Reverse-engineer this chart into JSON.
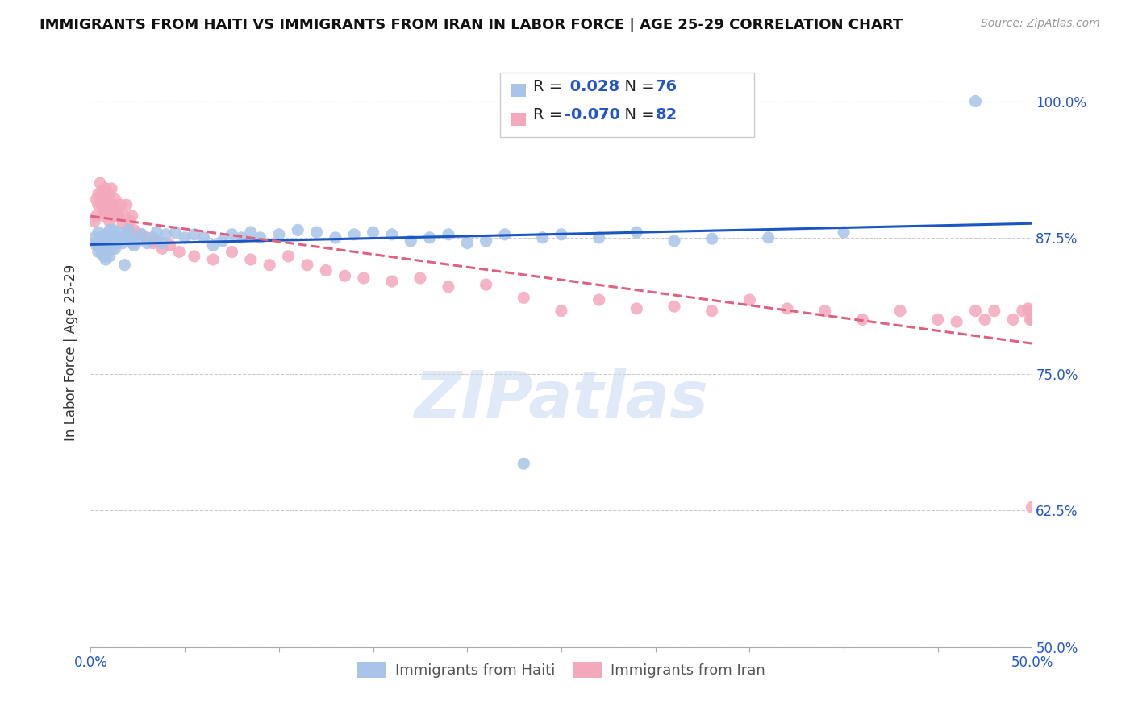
{
  "title": "IMMIGRANTS FROM HAITI VS IMMIGRANTS FROM IRAN IN LABOR FORCE | AGE 25-29 CORRELATION CHART",
  "source": "Source: ZipAtlas.com",
  "ylabel": "In Labor Force | Age 25-29",
  "xlim": [
    0.0,
    0.5
  ],
  "ylim": [
    0.5,
    1.04
  ],
  "ytick_vals": [
    0.5,
    0.625,
    0.75,
    0.875,
    1.0
  ],
  "haiti_color": "#a8c4e8",
  "iran_color": "#f4a8bc",
  "haiti_line_color": "#1a56c4",
  "iran_line_color": "#e06080",
  "haiti_R": 0.028,
  "haiti_N": 76,
  "iran_R": -0.07,
  "iran_N": 82,
  "legend_label_haiti": "Immigrants from Haiti",
  "legend_label_iran": "Immigrants from Iran",
  "blue_text_color": "#2255cc",
  "dark_text_color": "#222222",
  "watermark": "ZIPatlas",
  "haiti_x": [
    0.002,
    0.003,
    0.003,
    0.004,
    0.004,
    0.005,
    0.005,
    0.006,
    0.006,
    0.007,
    0.007,
    0.007,
    0.008,
    0.008,
    0.008,
    0.009,
    0.009,
    0.01,
    0.01,
    0.01,
    0.011,
    0.011,
    0.012,
    0.012,
    0.013,
    0.013,
    0.014,
    0.015,
    0.016,
    0.017,
    0.018,
    0.019,
    0.02,
    0.021,
    0.022,
    0.023,
    0.025,
    0.027,
    0.03,
    0.033,
    0.035,
    0.038,
    0.04,
    0.045,
    0.05,
    0.055,
    0.06,
    0.065,
    0.07,
    0.075,
    0.08,
    0.085,
    0.09,
    0.1,
    0.11,
    0.12,
    0.13,
    0.14,
    0.15,
    0.16,
    0.17,
    0.18,
    0.19,
    0.2,
    0.21,
    0.22,
    0.23,
    0.24,
    0.25,
    0.27,
    0.29,
    0.31,
    0.33,
    0.36,
    0.4,
    0.47
  ],
  "haiti_y": [
    0.875,
    0.87,
    0.868,
    0.88,
    0.862,
    0.875,
    0.868,
    0.875,
    0.86,
    0.872,
    0.858,
    0.865,
    0.878,
    0.86,
    0.855,
    0.865,
    0.87,
    0.882,
    0.858,
    0.87,
    0.865,
    0.878,
    0.87,
    0.882,
    0.875,
    0.865,
    0.87,
    0.88,
    0.875,
    0.87,
    0.85,
    0.878,
    0.882,
    0.875,
    0.87,
    0.868,
    0.872,
    0.878,
    0.87,
    0.875,
    0.88,
    0.87,
    0.878,
    0.88,
    0.875,
    0.878,
    0.875,
    0.868,
    0.872,
    0.878,
    0.875,
    0.88,
    0.875,
    0.878,
    0.882,
    0.88,
    0.875,
    0.878,
    0.88,
    0.878,
    0.872,
    0.875,
    0.878,
    0.87,
    0.872,
    0.878,
    0.668,
    0.875,
    0.878,
    0.875,
    0.88,
    0.872,
    0.874,
    0.875,
    0.88,
    1.0
  ],
  "iran_x": [
    0.002,
    0.003,
    0.003,
    0.004,
    0.004,
    0.005,
    0.005,
    0.006,
    0.006,
    0.007,
    0.007,
    0.007,
    0.008,
    0.008,
    0.008,
    0.009,
    0.009,
    0.01,
    0.01,
    0.01,
    0.011,
    0.011,
    0.012,
    0.012,
    0.013,
    0.013,
    0.014,
    0.015,
    0.016,
    0.017,
    0.018,
    0.019,
    0.02,
    0.021,
    0.022,
    0.023,
    0.025,
    0.027,
    0.03,
    0.033,
    0.035,
    0.038,
    0.042,
    0.047,
    0.055,
    0.065,
    0.075,
    0.085,
    0.095,
    0.105,
    0.115,
    0.125,
    0.135,
    0.145,
    0.16,
    0.175,
    0.19,
    0.21,
    0.23,
    0.25,
    0.27,
    0.29,
    0.31,
    0.33,
    0.35,
    0.37,
    0.39,
    0.41,
    0.43,
    0.45,
    0.46,
    0.47,
    0.475,
    0.48,
    0.49,
    0.495,
    0.498,
    0.499,
    0.499,
    0.5,
    0.5,
    0.5
  ],
  "iran_y": [
    0.89,
    0.895,
    0.91,
    0.915,
    0.905,
    0.925,
    0.91,
    0.905,
    0.918,
    0.9,
    0.915,
    0.895,
    0.908,
    0.92,
    0.9,
    0.91,
    0.898,
    0.905,
    0.915,
    0.89,
    0.895,
    0.92,
    0.905,
    0.895,
    0.91,
    0.895,
    0.9,
    0.895,
    0.905,
    0.888,
    0.895,
    0.905,
    0.882,
    0.89,
    0.895,
    0.882,
    0.878,
    0.878,
    0.875,
    0.87,
    0.872,
    0.865,
    0.868,
    0.862,
    0.858,
    0.855,
    0.862,
    0.855,
    0.85,
    0.858,
    0.85,
    0.845,
    0.84,
    0.838,
    0.835,
    0.838,
    0.83,
    0.832,
    0.82,
    0.808,
    0.818,
    0.81,
    0.812,
    0.808,
    0.818,
    0.81,
    0.808,
    0.8,
    0.808,
    0.8,
    0.798,
    0.808,
    0.8,
    0.808,
    0.8,
    0.808,
    0.81,
    0.8,
    0.808,
    0.8,
    0.8,
    0.628
  ]
}
